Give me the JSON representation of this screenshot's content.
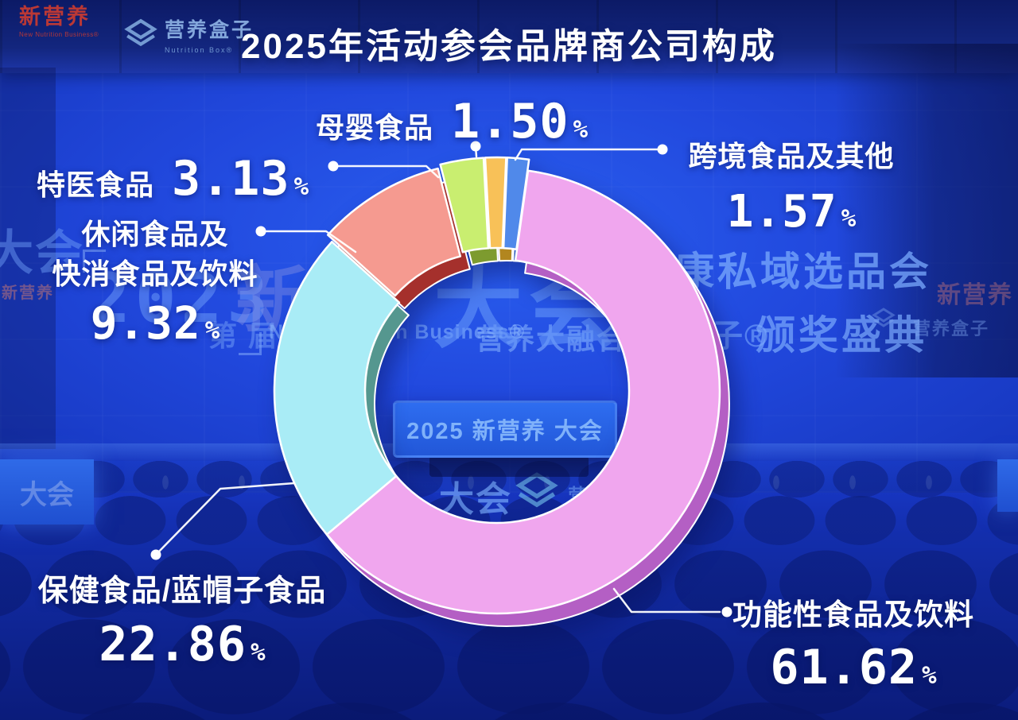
{
  "header": {
    "logo1": {
      "name": "新营养",
      "subtitle": "New Nutrition Business®"
    },
    "logo2": {
      "name": "营养盒子",
      "subtitle": "Nutrition Box®"
    },
    "title": "2025年活动参会品牌商公司构成"
  },
  "chart_data": {
    "type": "pie",
    "donut": true,
    "title": "2025年活动参会品牌商公司构成",
    "unit": "%",
    "order": "clockwise-from-top",
    "start_angle_deg": 8,
    "legend_position": "callout-labels",
    "series": [
      {
        "label": "功能性食品及饮料",
        "callout_lines": [
          "功能性食品及饮料"
        ],
        "value": 61.62,
        "display": "61.62",
        "color": "#f0a6ee",
        "side_color": "#b45fc4"
      },
      {
        "label": "保健食品/蓝帽子食品",
        "callout_lines": [
          "保健食品/蓝帽子食品"
        ],
        "value": 22.86,
        "display": "22.86",
        "color": "#a9ecf6",
        "side_color": "#55978f"
      },
      {
        "label": "休闲食品及快消食品及饮料",
        "callout_lines": [
          "休闲食品及",
          "快消食品及饮料"
        ],
        "value": 9.32,
        "display": "9.32",
        "color": "#f59a90",
        "side_color": "#a5302c"
      },
      {
        "label": "特医食品",
        "callout_lines": [
          "特医食品"
        ],
        "value": 3.13,
        "display": "3.13",
        "color": "#c9ee70",
        "side_color": "#7d9b2f"
      },
      {
        "label": "母婴食品",
        "callout_lines": [
          "母婴食品"
        ],
        "value": 1.5,
        "display": "1.50",
        "color": "#f8c158",
        "side_color": "#b2861f"
      },
      {
        "label": "跨境食品及其他",
        "callout_lines": [
          "跨境食品及其他"
        ],
        "value": 1.57,
        "display": "1.57",
        "color": "#5089ea",
        "side_color": "#2f5cbe"
      }
    ]
  },
  "backdrop": {
    "screen": {
      "year": "2023",
      "xin": "新",
      "edition": "第 届",
      "dahui_big": "大会",
      "english_line": "New Nutrition Business®",
      "ronghe": "营养大融合",
      "siyu": "康私域选品会",
      "hezi": "盒子®",
      "award": "颁奖盛典",
      "right_brand": "新营养",
      "right_brand2": "营养盒子",
      "left_edge": "大会",
      "left_edge2": "新营养"
    },
    "stage": {
      "podium": "2025 新营养 大会",
      "banner": "大会",
      "banner2": "营养"
    },
    "side_panel_text": "大会"
  },
  "palette": {
    "background_blue": "#2148dd",
    "top_band": "#0c1a66",
    "leader_line": "#ffffff",
    "title_text": "#ffffff",
    "logo1_red": "#c43a33",
    "logo2_blue": "#a0c8f0"
  }
}
